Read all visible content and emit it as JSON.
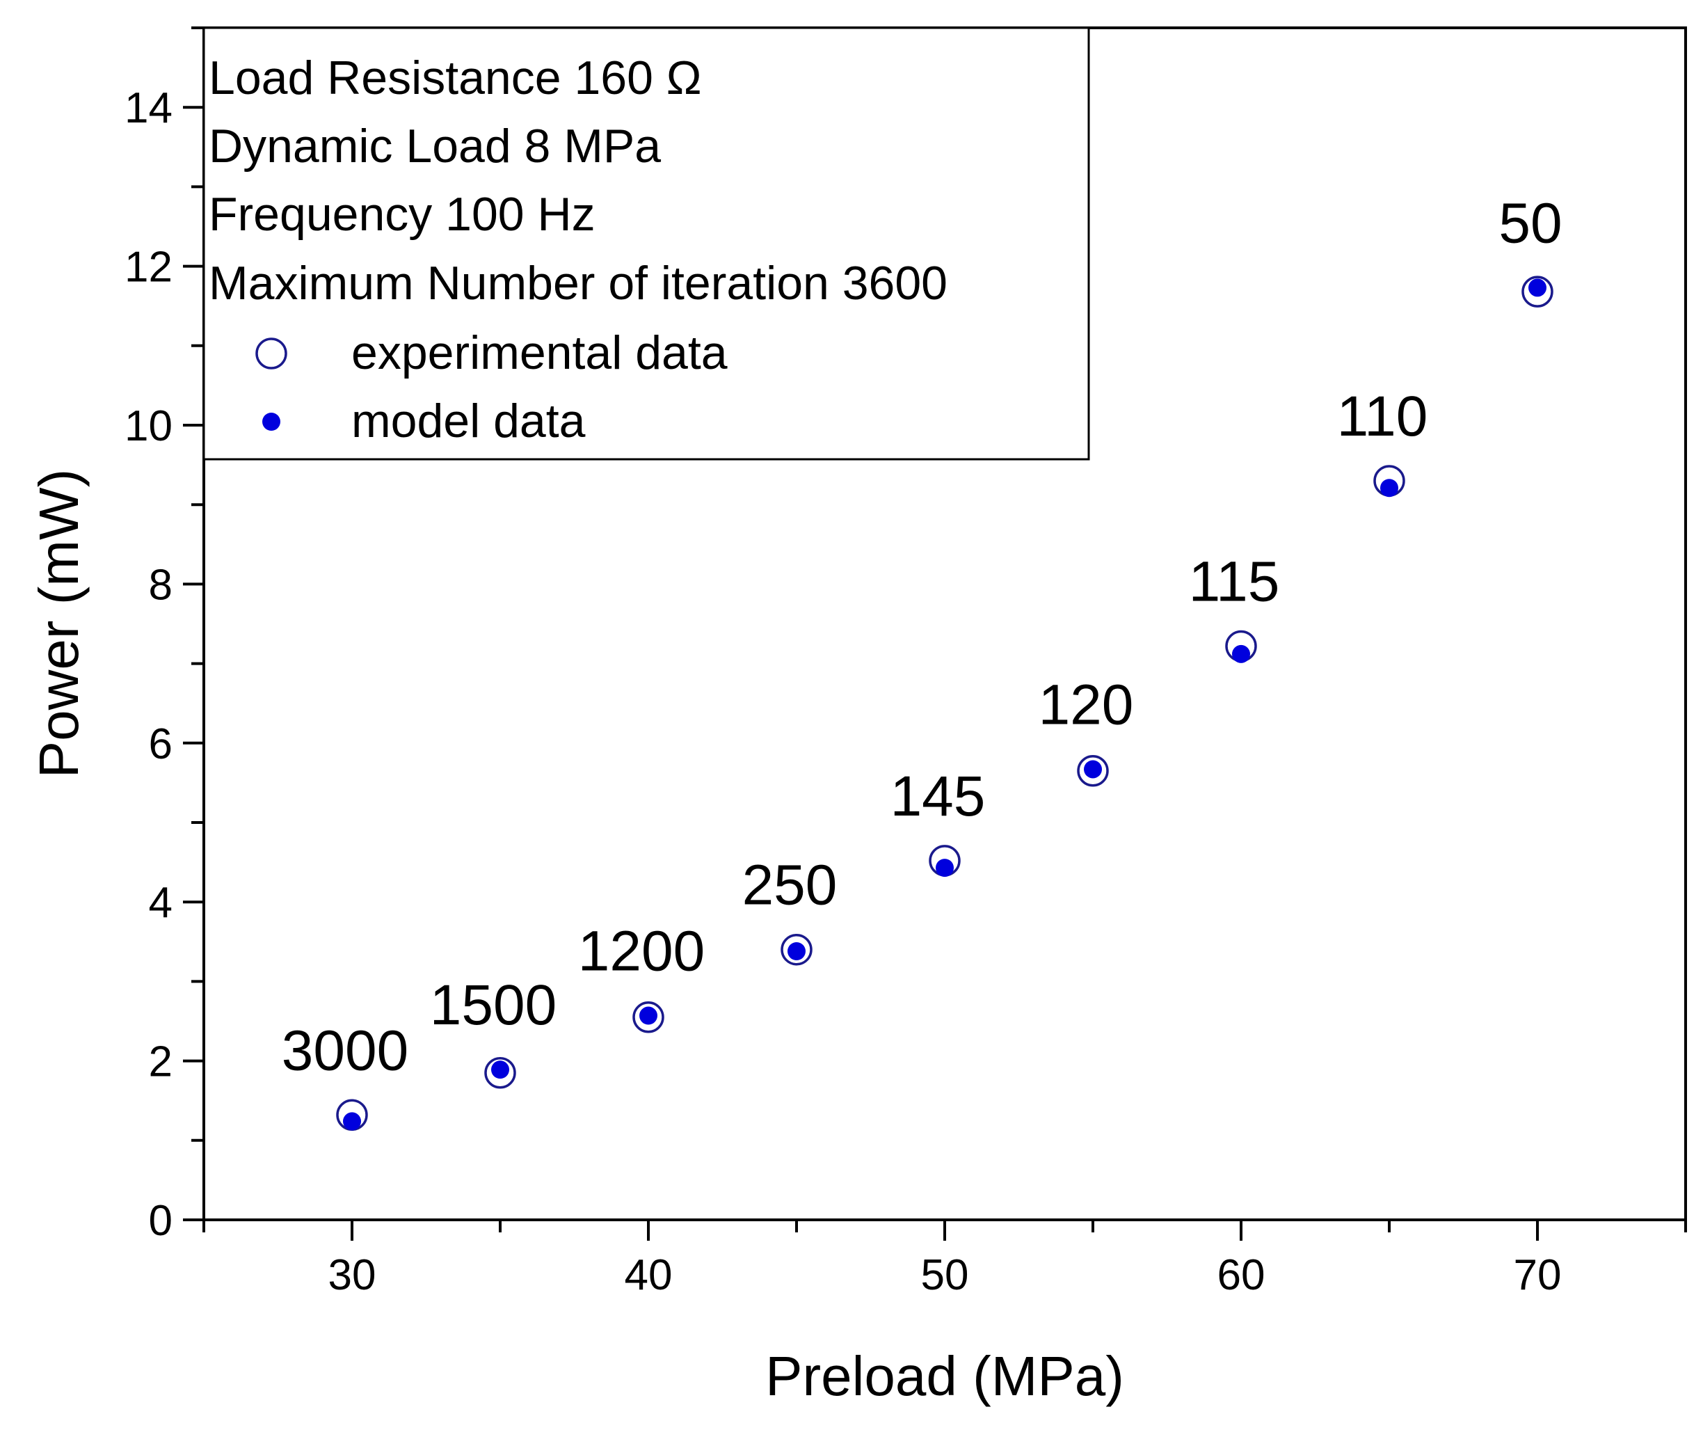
{
  "chart_data": {
    "type": "scatter",
    "xlabel": "Preload (MPa)",
    "ylabel": "Power (mW)",
    "xlim": [
      25,
      75
    ],
    "ylim": [
      0,
      15
    ],
    "xticks": [
      30,
      40,
      50,
      60,
      70
    ],
    "yticks": [
      0,
      2,
      4,
      6,
      8,
      10,
      12,
      14
    ],
    "grid": false,
    "legend_position": "top-left",
    "legend_text": [
      "Load Resistance 160 Ω",
      "Dynamic Load 8 MPa",
      "Frequency 100 Hz",
      "Maximum Number of iteration 3600"
    ],
    "series": [
      {
        "name": "experimental data",
        "marker": "open-circle",
        "color": "#1a1a8c",
        "x": [
          30,
          35,
          40,
          45,
          50,
          55,
          60,
          65,
          70
        ],
        "y": [
          1.32,
          1.85,
          2.55,
          3.4,
          4.52,
          5.65,
          7.22,
          9.3,
          11.68
        ]
      },
      {
        "name": "model data",
        "marker": "filled-circle",
        "color": "#0000dd",
        "x": [
          30,
          35,
          40,
          45,
          50,
          55,
          60,
          65,
          70
        ],
        "y": [
          1.24,
          1.89,
          2.57,
          3.38,
          4.43,
          5.67,
          7.12,
          9.21,
          11.73
        ]
      }
    ],
    "annotations": [
      {
        "x": 30,
        "text": "3000"
      },
      {
        "x": 35,
        "text": "1500"
      },
      {
        "x": 40,
        "text": "1200"
      },
      {
        "x": 45,
        "text": "250"
      },
      {
        "x": 50,
        "text": "145"
      },
      {
        "x": 55,
        "text": "120"
      },
      {
        "x": 60,
        "text": "115"
      },
      {
        "x": 65,
        "text": "110"
      },
      {
        "x": 70,
        "text": "50"
      }
    ]
  }
}
